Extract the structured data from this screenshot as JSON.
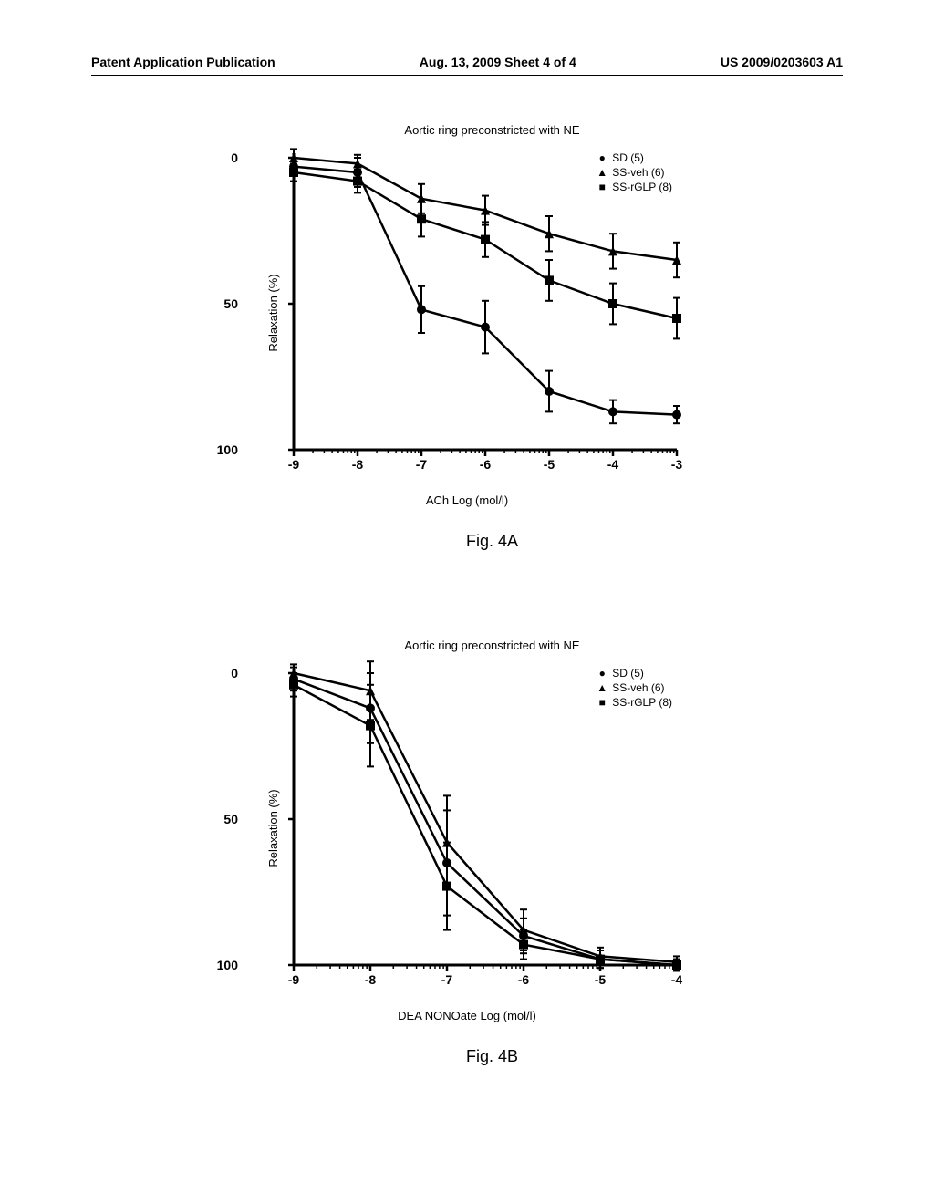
{
  "header": {
    "left": "Patent Application Publication",
    "center": "Aug. 13, 2009  Sheet 4 of 4",
    "right": "US 2009/0203603 A1"
  },
  "figA": {
    "type": "line",
    "title": "Aortic ring preconstricted with NE",
    "ylabel": "Relaxation (%)",
    "xlabel": "ACh Log (mol/l)",
    "fig_label": "Fig. 4A",
    "ylim": [
      0,
      100
    ],
    "yticks": [
      0,
      50,
      100
    ],
    "xlim": [
      -9,
      -3
    ],
    "xticks": [
      -9,
      -8,
      -7,
      -6,
      -5,
      -4,
      -3
    ],
    "xtick_labels": [
      "-9",
      "-8",
      "-7",
      "-6",
      "-5",
      "-4",
      "-3"
    ],
    "line_color": "#000000",
    "line_width": 2.5,
    "background": "#ffffff",
    "series": [
      {
        "name": "SD (5)",
        "marker": "circle",
        "x": [
          -9,
          -8,
          -7,
          -6,
          -5,
          -4,
          -3
        ],
        "y": [
          3,
          5,
          52,
          58,
          80,
          87,
          88
        ],
        "err": [
          3,
          5,
          8,
          9,
          7,
          4,
          3
        ]
      },
      {
        "name": "SS-veh (6)",
        "marker": "triangle",
        "x": [
          -9,
          -8,
          -7,
          -6,
          -5,
          -4,
          -3
        ],
        "y": [
          0,
          2,
          14,
          18,
          26,
          32,
          35
        ],
        "err": [
          3,
          3,
          5,
          5,
          6,
          6,
          6
        ]
      },
      {
        "name": "SS-rGLP (8)",
        "marker": "square",
        "x": [
          -9,
          -8,
          -7,
          -6,
          -5,
          -4,
          -3
        ],
        "y": [
          5,
          8,
          21,
          28,
          42,
          50,
          55
        ],
        "err": [
          3,
          4,
          6,
          6,
          7,
          7,
          7
        ]
      }
    ],
    "legend_items": [
      "SD (5)",
      "SS-veh (6)",
      "SS-rGLP (8)"
    ]
  },
  "figB": {
    "type": "line",
    "title": "Aortic ring preconstricted with NE",
    "ylabel": "Relaxation (%)",
    "xlabel": "DEA NONOate Log (mol/l)",
    "fig_label": "Fig. 4B",
    "ylim": [
      0,
      100
    ],
    "yticks": [
      0,
      50,
      100
    ],
    "xlim": [
      -9,
      -4
    ],
    "xticks": [
      -9,
      -8,
      -7,
      -6,
      -5,
      -4
    ],
    "xtick_labels": [
      "-9",
      "-8",
      "-7",
      "-6",
      "-5",
      "-4"
    ],
    "line_color": "#000000",
    "line_width": 2.5,
    "background": "#ffffff",
    "series": [
      {
        "name": "SD (5)",
        "marker": "circle",
        "x": [
          -9,
          -8,
          -7,
          -6,
          -5,
          -4
        ],
        "y": [
          2,
          12,
          65,
          90,
          98,
          100
        ],
        "err": [
          4,
          12,
          18,
          6,
          3,
          2
        ]
      },
      {
        "name": "SS-veh (6)",
        "marker": "triangle",
        "x": [
          -9,
          -8,
          -7,
          -6,
          -5,
          -4
        ],
        "y": [
          0,
          6,
          58,
          88,
          97,
          99
        ],
        "err": [
          3,
          10,
          16,
          7,
          3,
          2
        ]
      },
      {
        "name": "SS-rGLP (8)",
        "marker": "square",
        "x": [
          -9,
          -8,
          -7,
          -6,
          -5,
          -4
        ],
        "y": [
          4,
          18,
          73,
          93,
          98,
          100
        ],
        "err": [
          4,
          14,
          15,
          5,
          3,
          2
        ]
      }
    ],
    "legend_items": [
      "SD (5)",
      "SS-veh (6)",
      "SS-rGLP (8)"
    ]
  }
}
